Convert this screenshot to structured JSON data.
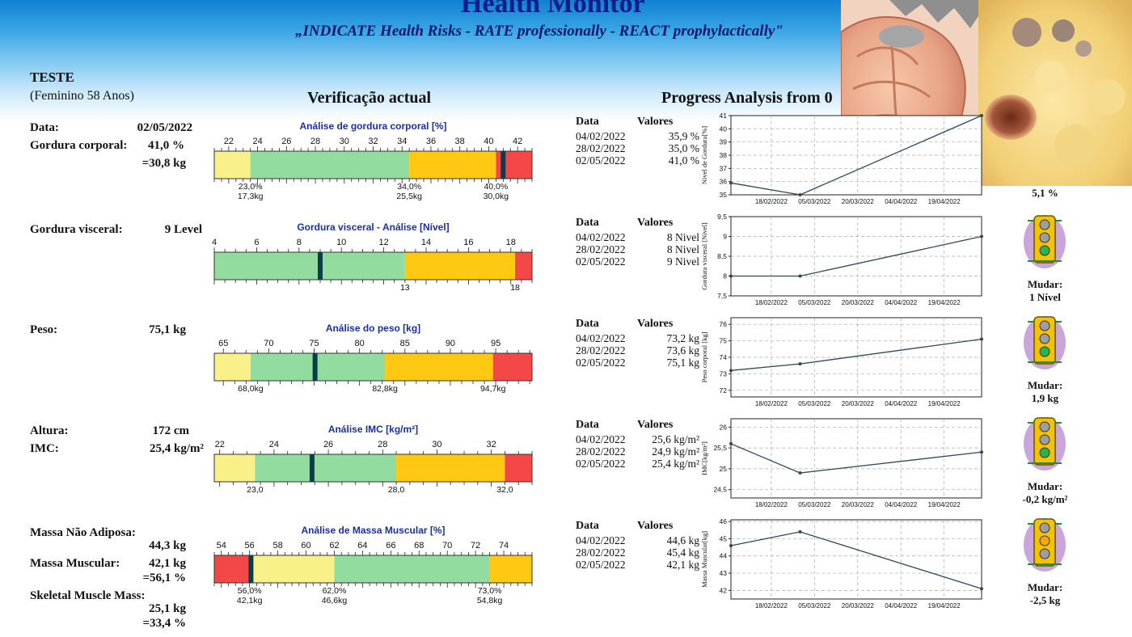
{
  "header": {
    "title": "Health Monitor",
    "subtitle": "„INDICATE Health Risks - RATE professionally - REACT prophylactically\""
  },
  "patient": {
    "name": "TESTE",
    "details": "(Feminino 58 Anos)"
  },
  "sections": {
    "current": "Verificação actual",
    "progress": "Progress Analysis from 0"
  },
  "metrics": {
    "date": {
      "label": "Data:",
      "value": "02/05/2022"
    },
    "body_fat": {
      "label": "Gordura corporal:",
      "value": "41,0 %",
      "value2": "=30,8 kg"
    },
    "visceral_fat": {
      "label": "Gordura visceral:",
      "value": "9 Level"
    },
    "weight": {
      "label": "Peso:",
      "value": "75,1 kg"
    },
    "height": {
      "label": "Altura:",
      "value": "172 cm"
    },
    "bmi": {
      "label": "IMC:",
      "value": "25,4 kg/m²"
    },
    "fat_free_mass": {
      "label": "Massa Não Adiposa:",
      "value": "44,3 kg"
    },
    "muscle_mass": {
      "label": "Massa Muscular:",
      "value": "42,1 kg",
      "value2": "=56,1 %"
    },
    "skeletal_muscle": {
      "label": "Skeletal Muscle Mass:",
      "value": "25,1 kg",
      "value2": "=33,4 %"
    }
  },
  "gauges": [
    {
      "title": "Análise de gordura corporal [%]",
      "min": 21,
      "max": 43,
      "ticks": [
        "22",
        "24",
        "26",
        "28",
        "30",
        "32",
        "34",
        "36",
        "38",
        "40",
        "42"
      ],
      "tick_values": [
        22,
        24,
        26,
        28,
        30,
        32,
        34,
        36,
        38,
        40,
        42
      ],
      "zones": [
        {
          "from": 21,
          "to": 23.5,
          "color": "#faf08a"
        },
        {
          "from": 23.5,
          "to": 34.5,
          "color": "#92dca0"
        },
        {
          "from": 34.5,
          "to": 40.5,
          "color": "#ffc813"
        },
        {
          "from": 40.5,
          "to": 43,
          "color": "#f44848"
        }
      ],
      "marker": 41.0,
      "bottom": [
        {
          "at": 23.5,
          "l1": "23,0%",
          "l2": "17,3kg"
        },
        {
          "at": 34.5,
          "l1": "34,0%",
          "l2": "25,5kg"
        },
        {
          "at": 40.5,
          "l1": "40,0%",
          "l2": "30,0kg"
        }
      ]
    },
    {
      "title": "Gordura visceral - Análise [Nível]",
      "min": 4,
      "max": 19,
      "ticks": [
        "4",
        "6",
        "8",
        "10",
        "12",
        "14",
        "16",
        "18"
      ],
      "tick_values": [
        4,
        6,
        8,
        10,
        12,
        14,
        16,
        18
      ],
      "zones": [
        {
          "from": 4,
          "to": 13,
          "color": "#92dca0"
        },
        {
          "from": 13,
          "to": 18.2,
          "color": "#ffc813"
        },
        {
          "from": 18.2,
          "to": 19,
          "color": "#f44848"
        }
      ],
      "marker": 9,
      "bottom": [
        {
          "at": 13,
          "l1": "13",
          "l2": ""
        },
        {
          "at": 18.2,
          "l1": "18",
          "l2": ""
        }
      ]
    },
    {
      "title": "Análise do peso [kg]",
      "min": 64,
      "max": 99,
      "ticks": [
        "65",
        "70",
        "75",
        "80",
        "85",
        "90",
        "95"
      ],
      "tick_values": [
        65,
        70,
        75,
        80,
        85,
        90,
        95
      ],
      "zones": [
        {
          "from": 64,
          "to": 68,
          "color": "#faf08a"
        },
        {
          "from": 68,
          "to": 82.8,
          "color": "#92dca0"
        },
        {
          "from": 82.8,
          "to": 94.7,
          "color": "#ffc813"
        },
        {
          "from": 94.7,
          "to": 99,
          "color": "#f44848"
        }
      ],
      "marker": 75.1,
      "bottom": [
        {
          "at": 68,
          "l1": "68,0kg",
          "l2": ""
        },
        {
          "at": 82.8,
          "l1": "82,8kg",
          "l2": ""
        },
        {
          "at": 94.7,
          "l1": "94,7kg",
          "l2": ""
        }
      ]
    },
    {
      "title": "Análise IMC [kg/m²]",
      "min": 21.8,
      "max": 33.5,
      "ticks": [
        "22",
        "24",
        "26",
        "28",
        "30",
        "32"
      ],
      "tick_values": [
        22,
        24,
        26,
        28,
        30,
        32
      ],
      "zones": [
        {
          "from": 21.8,
          "to": 23.3,
          "color": "#faf08a"
        },
        {
          "from": 23.3,
          "to": 28.5,
          "color": "#92dca0"
        },
        {
          "from": 28.5,
          "to": 32.5,
          "color": "#ffc813"
        },
        {
          "from": 32.5,
          "to": 33.5,
          "color": "#f44848"
        }
      ],
      "marker": 25.4,
      "bottom": [
        {
          "at": 23.3,
          "l1": "23,0",
          "l2": ""
        },
        {
          "at": 28.5,
          "l1": "28,0",
          "l2": ""
        },
        {
          "at": 32.5,
          "l1": "32,0",
          "l2": ""
        }
      ]
    },
    {
      "title": "Análise de Massa Muscular [%]",
      "min": 53.5,
      "max": 76,
      "ticks": [
        "54",
        "56",
        "58",
        "60",
        "62",
        "64",
        "66",
        "68",
        "70",
        "72",
        "74"
      ],
      "tick_values": [
        54,
        56,
        58,
        60,
        62,
        64,
        66,
        68,
        70,
        72,
        74
      ],
      "zones": [
        {
          "from": 53.5,
          "to": 56,
          "color": "#f44848"
        },
        {
          "from": 56,
          "to": 62,
          "color": "#faf08a"
        },
        {
          "from": 62,
          "to": 73,
          "color": "#92dca0"
        },
        {
          "from": 73,
          "to": 76,
          "color": "#ffc813"
        }
      ],
      "marker": 56.1,
      "bottom": [
        {
          "at": 56,
          "l1": "56,0%",
          "l2": "42,1kg"
        },
        {
          "at": 62,
          "l1": "62,0%",
          "l2": "46,6kg"
        },
        {
          "at": 73,
          "l1": "73,0%",
          "l2": "54,8kg"
        }
      ]
    }
  ],
  "tables": [
    {
      "h_date": "Data",
      "h_val": "Valores",
      "rows": [
        [
          "04/02/2022",
          "35,9 %"
        ],
        [
          "28/02/2022",
          "35,0 %"
        ],
        [
          "02/05/2022",
          "41,0 %"
        ]
      ]
    },
    {
      "h_date": "Data",
      "h_val": "Valores",
      "rows": [
        [
          "04/02/2022",
          "8 Nivel"
        ],
        [
          "28/02/2022",
          "8 Nivel"
        ],
        [
          "02/05/2022",
          "9 Nivel"
        ]
      ]
    },
    {
      "h_date": "Data",
      "h_val": "Valores",
      "rows": [
        [
          "04/02/2022",
          "73,2 kg"
        ],
        [
          "28/02/2022",
          "73,6 kg"
        ],
        [
          "02/05/2022",
          "75,1 kg"
        ]
      ]
    },
    {
      "h_date": "Data",
      "h_val": "Valores",
      "rows": [
        [
          "04/02/2022",
          "25,6 kg/m²"
        ],
        [
          "28/02/2022",
          "24,9 kg/m²"
        ],
        [
          "02/05/2022",
          "25,4 kg/m²"
        ]
      ]
    },
    {
      "h_date": "Data",
      "h_val": "Valores",
      "rows": [
        [
          "04/02/2022",
          "44,6 kg"
        ],
        [
          "28/02/2022",
          "45,4 kg"
        ],
        [
          "02/05/2022",
          "42,1 kg"
        ]
      ]
    }
  ],
  "chart_data": [
    {
      "type": "line",
      "ylabel": "Nivel de Gordura[%]",
      "x": [
        "04/02/2022",
        "28/02/2022",
        "02/05/2022"
      ],
      "values": [
        35.9,
        35.0,
        41.0
      ],
      "ylim": [
        35,
        41
      ],
      "yticks": [
        35,
        36,
        37,
        38,
        39,
        40,
        41
      ],
      "ytick_labels": [
        "35",
        "36",
        "37",
        "38",
        "39",
        "40",
        "41"
      ],
      "xticks": [
        "18/02/2022",
        "05/03/2022",
        "20/03/2022",
        "04/04/2022",
        "19/04/2022"
      ],
      "grid": true
    },
    {
      "type": "line",
      "ylabel": "Gordura visceral [Nível]",
      "x": [
        "04/02/2022",
        "28/02/2022",
        "02/05/2022"
      ],
      "values": [
        8,
        8,
        9
      ],
      "ylim": [
        7.5,
        9.5
      ],
      "yticks": [
        7.5,
        8,
        8.5,
        9,
        9.5
      ],
      "ytick_labels": [
        "7,5",
        "8",
        "8,5",
        "9",
        "9,5"
      ],
      "xticks": [
        "18/02/2022",
        "05/03/2022",
        "20/03/2022",
        "04/04/2022",
        "19/04/2022"
      ],
      "grid": true
    },
    {
      "type": "line",
      "ylabel": "Peso corporal [kg]",
      "x": [
        "04/02/2022",
        "28/02/2022",
        "02/05/2022"
      ],
      "values": [
        73.2,
        73.6,
        75.1
      ],
      "ylim": [
        71.6,
        76.4
      ],
      "yticks": [
        72,
        73,
        74,
        75,
        76
      ],
      "ytick_labels": [
        "72",
        "73",
        "74",
        "75",
        "76"
      ],
      "xticks": [
        "18/02/2022",
        "05/03/2022",
        "20/03/2022",
        "04/04/2022",
        "19/04/2022"
      ],
      "grid": true
    },
    {
      "type": "line",
      "ylabel": "IMC[kg/m²]",
      "x": [
        "04/02/2022",
        "28/02/2022",
        "02/05/2022"
      ],
      "values": [
        25.6,
        24.9,
        25.4
      ],
      "ylim": [
        24.3,
        26.2
      ],
      "yticks": [
        24.5,
        25,
        25.5,
        26
      ],
      "ytick_labels": [
        "24,5",
        "25",
        "25,5",
        "26"
      ],
      "xticks": [
        "18/02/2022",
        "05/03/2022",
        "20/03/2022",
        "04/04/2022",
        "19/04/2022"
      ],
      "grid": true
    },
    {
      "type": "line",
      "ylabel": "Massa Muscular[kg]",
      "x": [
        "04/02/2022",
        "28/02/2022",
        "02/05/2022"
      ],
      "values": [
        44.6,
        45.4,
        42.1
      ],
      "ylim": [
        41.5,
        46.1
      ],
      "yticks": [
        42,
        43,
        44,
        45,
        46
      ],
      "ytick_labels": [
        "42",
        "43",
        "44",
        "45",
        "46"
      ],
      "xticks": [
        "18/02/2022",
        "05/03/2022",
        "20/03/2022",
        "04/04/2022",
        "19/04/2022"
      ],
      "grid": true
    }
  ],
  "changes": [
    {
      "label": "",
      "value": "5,1 %"
    },
    {
      "label": "Mudar:",
      "value": "1 Nível"
    },
    {
      "label": "Mudar:",
      "value": "1,9 kg"
    },
    {
      "label": "Mudar:",
      "value": "-0,2 kg/m²"
    },
    {
      "label": "Mudar:",
      "value": "-2,5 kg"
    }
  ],
  "traffic_lights": [
    {
      "lit": "green"
    },
    {
      "lit": "green"
    },
    {
      "lit": "green"
    },
    {
      "lit": "yellow"
    }
  ]
}
